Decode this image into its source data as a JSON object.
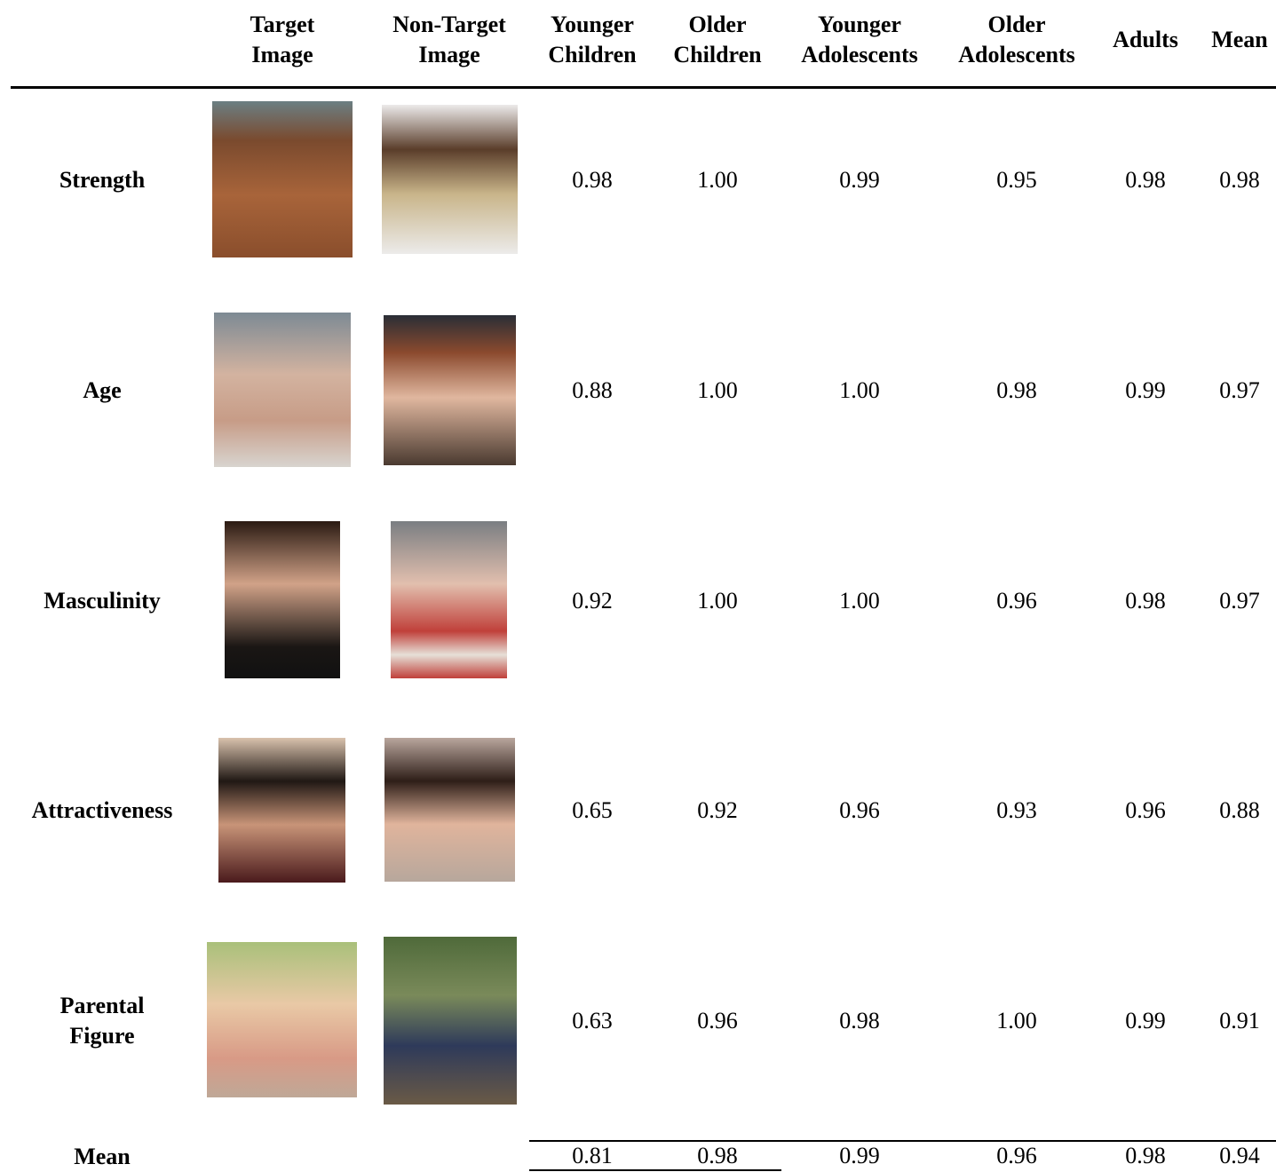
{
  "table": {
    "headers": [
      [
        "Target",
        "Image"
      ],
      [
        "Non-Target",
        "Image"
      ],
      [
        "Younger",
        "Children"
      ],
      [
        "Older",
        "Children"
      ],
      [
        "Younger",
        "Adolescents"
      ],
      [
        "Older",
        "Adolescents"
      ],
      [
        "Adults"
      ],
      [
        "Mean"
      ]
    ],
    "rows": [
      {
        "label": [
          "Strength"
        ],
        "values": [
          "0.98",
          "1.00",
          "0.99",
          "0.95",
          "0.98",
          "0.98"
        ]
      },
      {
        "label": [
          "Age"
        ],
        "values": [
          "0.88",
          "1.00",
          "1.00",
          "0.98",
          "0.99",
          "0.97"
        ]
      },
      {
        "label": [
          "Masculinity"
        ],
        "values": [
          "0.92",
          "1.00",
          "1.00",
          "0.96",
          "0.98",
          "0.97"
        ]
      },
      {
        "label": [
          "Attractiveness"
        ],
        "values": [
          "0.65",
          "0.92",
          "0.96",
          "0.93",
          "0.96",
          "0.88"
        ]
      },
      {
        "label": [
          "Parental",
          "Figure"
        ],
        "values": [
          "0.63",
          "0.96",
          "0.98",
          "1.00",
          "0.99",
          "0.91"
        ]
      }
    ],
    "mean_row": {
      "label": "Mean",
      "values": [
        "0.81",
        "0.98",
        "0.99",
        "0.96",
        "0.98",
        "0.94"
      ]
    }
  }
}
